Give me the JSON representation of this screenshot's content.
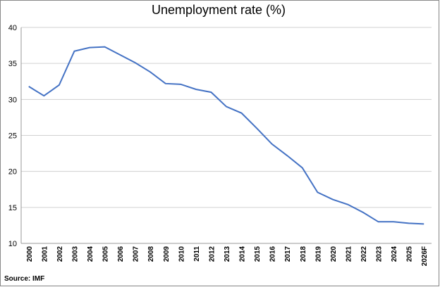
{
  "chart_data": {
    "type": "line",
    "title": "Unemployment rate (%)",
    "source": "Source: IMF",
    "categories": [
      "2000",
      "2001",
      "2002",
      "2003",
      "2004",
      "2005",
      "2006",
      "2007",
      "2008",
      "2009",
      "2010",
      "2011",
      "2012",
      "2013",
      "2014",
      "2015",
      "2016",
      "2017",
      "2018",
      "2019",
      "2020",
      "2021",
      "2022",
      "2023",
      "2024",
      "2025",
      "2026F"
    ],
    "series": [
      {
        "name": "Unemployment rate",
        "color": "#4472c4",
        "values": [
          31.8,
          30.5,
          32.0,
          36.7,
          37.2,
          37.3,
          36.2,
          35.1,
          33.8,
          32.2,
          32.1,
          31.4,
          31.0,
          29.0,
          28.1,
          26.0,
          23.8,
          22.2,
          20.5,
          17.1,
          16.1,
          15.4,
          14.3,
          13.0,
          13.0,
          12.8,
          12.7
        ]
      }
    ],
    "ylim": [
      10,
      40
    ],
    "yticks": [
      10,
      15,
      20,
      25,
      30,
      35,
      40
    ],
    "grid": true
  }
}
